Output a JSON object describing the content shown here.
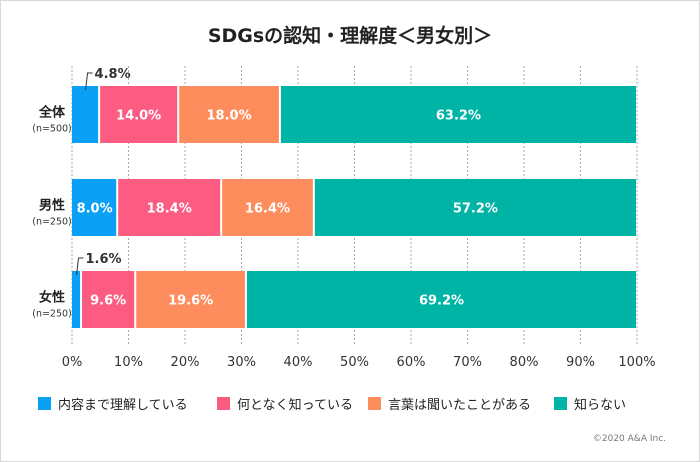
{
  "chart_data": {
    "type": "bar",
    "orientation": "horizontal",
    "stacked": true,
    "title": "SDGsの認知・理解度＜男女別＞",
    "categories": [
      {
        "label": "全体",
        "sub": "(n=500)"
      },
      {
        "label": "男性",
        "sub": "(n=250)"
      },
      {
        "label": "女性",
        "sub": "(n=250)"
      }
    ],
    "series": [
      {
        "name": "内容まで理解している",
        "color": "#0aa0f5",
        "values": [
          4.8,
          8.0,
          1.6
        ]
      },
      {
        "name": "何となく知っている",
        "color": "#fc5c82",
        "values": [
          14.0,
          18.4,
          9.6
        ]
      },
      {
        "name": "言葉は聞いたことがある",
        "color": "#fe8d5d",
        "values": [
          18.0,
          16.4,
          19.6
        ]
      },
      {
        "name": "知らない",
        "color": "#00b4a5",
        "values": [
          63.2,
          57.2,
          69.2
        ]
      }
    ],
    "xlim": [
      0,
      100
    ],
    "xticks": [
      "0%",
      "10%",
      "20%",
      "30%",
      "40%",
      "50%",
      "60%",
      "70%",
      "80%",
      "90%",
      "100%"
    ],
    "grid": true,
    "legend": "bottom"
  },
  "footer": {
    "copyright": "©2020 A&A Inc."
  }
}
